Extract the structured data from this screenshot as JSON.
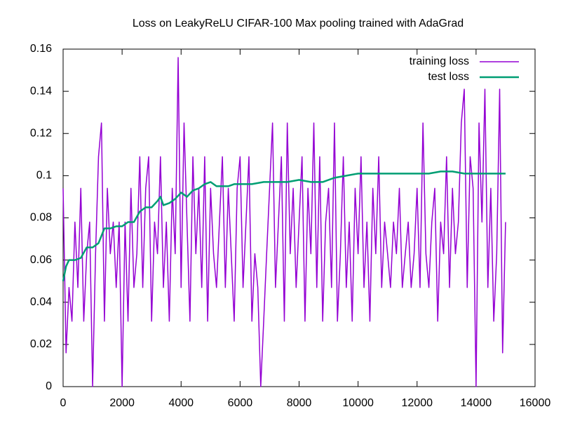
{
  "chart_data": {
    "type": "line",
    "title": "Loss on LeakyReLU CIFAR-100 Max pooling trained with AdaGrad",
    "xlim": [
      0,
      16000
    ],
    "xticks": [
      0,
      2000,
      4000,
      6000,
      8000,
      10000,
      12000,
      14000,
      16000
    ],
    "ylim": [
      0,
      0.16
    ],
    "yticks": [
      0,
      0.02,
      0.04,
      0.06,
      0.08,
      0.1,
      0.12,
      0.14,
      0.16
    ],
    "grid": false,
    "legend": "top-right",
    "series": [
      {
        "name": "training loss",
        "color": "#9400d3",
        "x": [
          0,
          100,
          200,
          300,
          400,
          500,
          600,
          700,
          800,
          900,
          1000,
          1100,
          1200,
          1300,
          1400,
          1500,
          1600,
          1700,
          1800,
          1900,
          2000,
          2100,
          2200,
          2300,
          2400,
          2500,
          2600,
          2700,
          2800,
          2900,
          3000,
          3100,
          3200,
          3300,
          3400,
          3500,
          3600,
          3700,
          3800,
          3900,
          4000,
          4100,
          4200,
          4300,
          4400,
          4500,
          4600,
          4700,
          4800,
          4900,
          5000,
          5100,
          5200,
          5300,
          5400,
          5500,
          5600,
          5700,
          5800,
          5900,
          6000,
          6100,
          6200,
          6300,
          6400,
          6500,
          6600,
          6700,
          6800,
          6900,
          7000,
          7100,
          7200,
          7300,
          7400,
          7500,
          7600,
          7700,
          7800,
          7900,
          8000,
          8100,
          8200,
          8300,
          8400,
          8500,
          8600,
          8700,
          8800,
          8900,
          9000,
          9100,
          9200,
          9300,
          9400,
          9500,
          9600,
          9700,
          9800,
          9900,
          10000,
          10100,
          10200,
          10300,
          10400,
          10500,
          10600,
          10700,
          10800,
          10900,
          11000,
          11100,
          11200,
          11300,
          11400,
          11500,
          11600,
          11700,
          11800,
          11900,
          12000,
          12100,
          12200,
          12300,
          12400,
          12500,
          12600,
          12700,
          12800,
          12900,
          13000,
          13100,
          13200,
          13300,
          13400,
          13500,
          13600,
          13700,
          13800,
          13900,
          14000,
          14100,
          14200,
          14300,
          14400,
          14500,
          14600,
          14700,
          14800,
          14900,
          15000
        ],
        "values": [
          0.094,
          0.016,
          0.047,
          0.031,
          0.078,
          0.047,
          0.094,
          0.031,
          0.063,
          0.078,
          0,
          0.063,
          0.109,
          0.125,
          0.031,
          0.094,
          0.063,
          0.078,
          0.047,
          0.078,
          0,
          0.078,
          0.031,
          0.094,
          0.047,
          0.063,
          0.109,
          0.047,
          0.094,
          0.109,
          0.031,
          0.078,
          0.063,
          0.109,
          0.047,
          0.078,
          0.031,
          0.094,
          0.063,
          0.156,
          0.047,
          0.125,
          0.078,
          0.031,
          0.109,
          0.063,
          0.094,
          0.047,
          0.109,
          0.031,
          0.094,
          0.063,
          0.047,
          0.078,
          0.109,
          0.047,
          0.094,
          0.063,
          0.031,
          0.094,
          0.109,
          0.047,
          0.078,
          0.109,
          0.031,
          0.063,
          0.047,
          0,
          0.031,
          0.063,
          0.094,
          0.125,
          0.047,
          0.078,
          0.109,
          0.031,
          0.125,
          0.063,
          0.094,
          0.047,
          0.078,
          0.109,
          0.031,
          0.094,
          0.063,
          0.125,
          0.047,
          0.109,
          0.031,
          0.078,
          0.094,
          0.047,
          0.125,
          0.031,
          0.063,
          0.109,
          0.047,
          0.078,
          0.031,
          0.094,
          0.063,
          0.109,
          0.047,
          0.078,
          0.031,
          0.094,
          0.063,
          0.109,
          0.047,
          0.078,
          0.063,
          0.047,
          0.078,
          0.063,
          0.094,
          0.047,
          0.063,
          0.078,
          0.047,
          0.063,
          0.094,
          0.047,
          0.125,
          0.063,
          0.047,
          0.078,
          0.094,
          0.031,
          0.078,
          0.063,
          0.109,
          0.047,
          0.094,
          0.063,
          0.078,
          0.125,
          0.141,
          0.047,
          0.109,
          0.094,
          0,
          0.125,
          0.078,
          0.141,
          0.047,
          0.094,
          0.031,
          0.063,
          0.141,
          0.016,
          0.078
        ]
      },
      {
        "name": "test loss",
        "color": "#009e73",
        "x": [
          0,
          100,
          200,
          400,
          600,
          800,
          1000,
          1200,
          1400,
          1600,
          1800,
          2000,
          2200,
          2400,
          2600,
          2800,
          3000,
          3200,
          3300,
          3400,
          3600,
          3800,
          4000,
          4200,
          4400,
          4600,
          4800,
          5000,
          5200,
          5400,
          5600,
          5800,
          6000,
          6400,
          6800,
          7200,
          7600,
          8000,
          8400,
          8800,
          9200,
          9600,
          10000,
          10400,
          10800,
          11200,
          11600,
          12000,
          12400,
          12800,
          13200,
          13600,
          14000,
          14400,
          14800,
          15000
        ],
        "values": [
          0.05,
          0.057,
          0.06,
          0.06,
          0.061,
          0.066,
          0.066,
          0.068,
          0.075,
          0.075,
          0.076,
          0.076,
          0.078,
          0.078,
          0.083,
          0.085,
          0.085,
          0.088,
          0.09,
          0.086,
          0.087,
          0.089,
          0.092,
          0.09,
          0.093,
          0.094,
          0.096,
          0.097,
          0.095,
          0.095,
          0.095,
          0.096,
          0.096,
          0.096,
          0.097,
          0.097,
          0.097,
          0.098,
          0.097,
          0.097,
          0.099,
          0.1,
          0.101,
          0.101,
          0.101,
          0.101,
          0.101,
          0.101,
          0.101,
          0.102,
          0.102,
          0.101,
          0.101,
          0.101,
          0.101,
          0.101
        ]
      }
    ]
  }
}
